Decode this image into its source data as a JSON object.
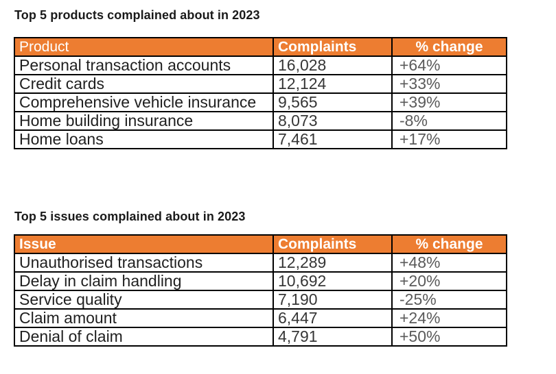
{
  "colors": {
    "header_background": "#ED7D31",
    "header_text": "#ffffff",
    "table_border": "#000000",
    "body_text": "#1f1f1f",
    "count_text": "#363636",
    "change_text": "#5a5a5a",
    "page_background": "#ffffff"
  },
  "tables": [
    {
      "title": "Top 5 products complained about in 2023",
      "columns": [
        "Product",
        "Complaints",
        "% change"
      ],
      "rows": [
        [
          "Personal transaction accounts",
          "16,028",
          "+64%"
        ],
        [
          "Credit cards",
          "12,124",
          "+33%"
        ],
        [
          "Comprehensive vehicle insurance",
          "9,565",
          "+39%"
        ],
        [
          "Home building insurance",
          "8,073",
          "-8%"
        ],
        [
          "Home loans",
          "7,461",
          "+17%"
        ]
      ]
    },
    {
      "title": "Top 5 issues complained about in 2023",
      "columns": [
        "Issue",
        "Complaints",
        "% change"
      ],
      "rows": [
        [
          "Unauthorised transactions",
          "12,289",
          "+48%"
        ],
        [
          "Delay in claim handling",
          "10,692",
          "+20%"
        ],
        [
          "Service quality",
          "7,190",
          "-25%"
        ],
        [
          "Claim amount",
          "6,447",
          "+24%"
        ],
        [
          "Denial of claim",
          "4,791",
          "+50%"
        ]
      ]
    }
  ]
}
